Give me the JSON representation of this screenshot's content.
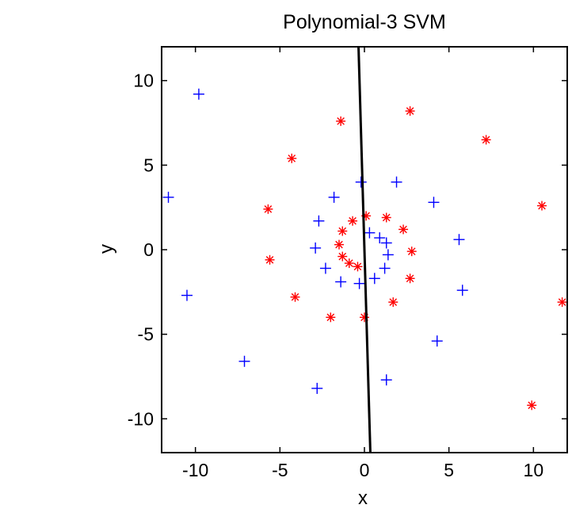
{
  "chart_data": {
    "type": "scatter",
    "title": "Polynomial-3 SVM",
    "xlabel": "x",
    "ylabel": "y",
    "xlim": [
      -12,
      12
    ],
    "ylim": [
      -12,
      12
    ],
    "xticks": [
      -10,
      -5,
      0,
      5,
      10
    ],
    "yticks": [
      -10,
      -5,
      0,
      5,
      10
    ],
    "xtick_labels": [
      "-10",
      "-5",
      "0",
      "5",
      "10"
    ],
    "ytick_labels": [
      "-10",
      "-5",
      "0",
      "5",
      "10"
    ],
    "grid": false,
    "legend": false,
    "series": [
      {
        "marker": "plus",
        "color": "#0000ff",
        "points": [
          [
            -9.8,
            9.2
          ],
          [
            -11.6,
            3.1
          ],
          [
            -10.5,
            -2.7
          ],
          [
            -7.1,
            -6.6
          ],
          [
            -2.8,
            -8.2
          ],
          [
            1.3,
            -7.7
          ],
          [
            4.3,
            -5.4
          ],
          [
            5.8,
            -2.4
          ],
          [
            5.6,
            0.6
          ],
          [
            4.1,
            2.8
          ],
          [
            1.9,
            4.0
          ],
          [
            -0.2,
            4.0
          ],
          [
            -1.8,
            3.1
          ],
          [
            -2.7,
            1.7
          ],
          [
            -2.9,
            0.1
          ],
          [
            -2.3,
            -1.1
          ],
          [
            -1.4,
            -1.9
          ],
          [
            -0.3,
            -2.0
          ],
          [
            0.6,
            -1.7
          ],
          [
            1.2,
            -1.1
          ],
          [
            1.4,
            -0.3
          ],
          [
            1.3,
            0.4
          ],
          [
            0.9,
            0.7
          ],
          [
            0.3,
            1.0
          ]
        ]
      },
      {
        "marker": "asterisk",
        "color": "#ff0000",
        "points": [
          [
            2.7,
            8.2
          ],
          [
            -1.4,
            7.6
          ],
          [
            -4.3,
            5.4
          ],
          [
            7.2,
            6.5
          ],
          [
            10.5,
            2.6
          ],
          [
            11.7,
            -3.1
          ],
          [
            9.9,
            -9.2
          ],
          [
            -5.7,
            2.4
          ],
          [
            -5.6,
            -0.6
          ],
          [
            -4.1,
            -2.8
          ],
          [
            -2.0,
            -4.0
          ],
          [
            0.0,
            -4.0
          ],
          [
            1.7,
            -3.1
          ],
          [
            2.7,
            -1.7
          ],
          [
            2.8,
            -0.1
          ],
          [
            2.3,
            1.2
          ],
          [
            1.3,
            1.9
          ],
          [
            0.1,
            2.0
          ],
          [
            -0.7,
            1.7
          ],
          [
            -1.3,
            1.1
          ],
          [
            -1.5,
            0.3
          ],
          [
            -1.3,
            -0.4
          ],
          [
            -0.9,
            -0.8
          ],
          [
            -0.4,
            -1.0
          ]
        ]
      }
    ],
    "decision_boundary": {
      "color": "#000000",
      "points": [
        [
          -0.35,
          12
        ],
        [
          0.35,
          -12
        ]
      ]
    }
  }
}
